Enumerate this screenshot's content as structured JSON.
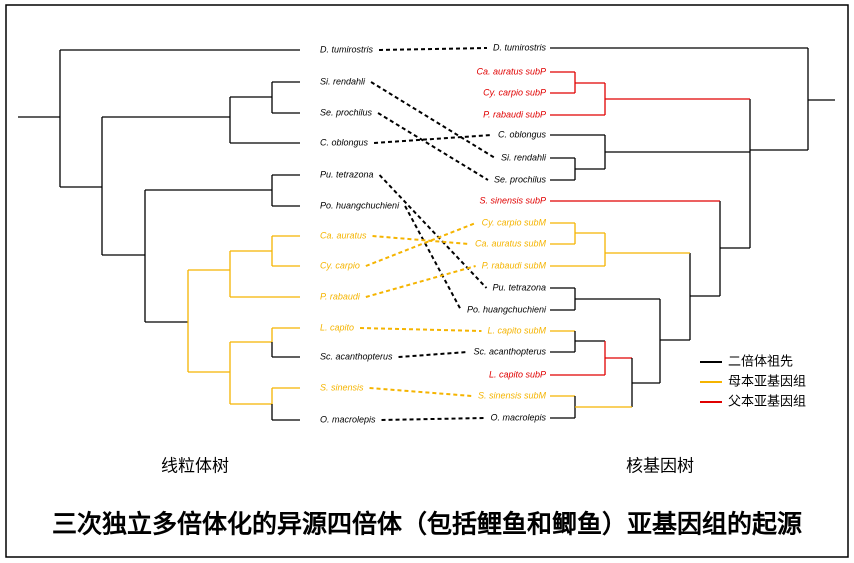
{
  "title": "三次独立多倍体化的异源四倍体（包括鲤鱼和鲫鱼）亚基因组的起源",
  "left_tree": {
    "title": "线粒体树",
    "leaves": [
      {
        "label": "D. tumirostris"
      },
      {
        "label": "Si. rendahli"
      },
      {
        "label": "Se. prochilus"
      },
      {
        "label": "C. oblongus"
      },
      {
        "label": "Pu. tetrazona"
      },
      {
        "label": "Po. huangchuchieni"
      },
      {
        "label": "Ca. auratus"
      },
      {
        "label": "Cy. carpio"
      },
      {
        "label": "P. rabaudi"
      },
      {
        "label": "L. capito"
      },
      {
        "label": "Sc. acanthopterus"
      },
      {
        "label": "S. sinensis"
      },
      {
        "label": "O. macrolepis"
      }
    ]
  },
  "right_tree": {
    "title": "核基因树",
    "leaves": [
      {
        "label": "D. tumirostris"
      },
      {
        "label": "Ca. auratus subP"
      },
      {
        "label": "Cy. carpio subP"
      },
      {
        "label": "P. rabaudi subP"
      },
      {
        "label": "C. oblongus"
      },
      {
        "label": "Si. rendahli"
      },
      {
        "label": "Se. prochilus"
      },
      {
        "label": "S. sinensis subP"
      },
      {
        "label": "Cy. carpio subM"
      },
      {
        "label": "Ca. auratus subM"
      },
      {
        "label": "P. rabaudi subM"
      },
      {
        "label": "Pu. tetrazona"
      },
      {
        "label": "Po. huangchuchieni"
      },
      {
        "label": "L. capito subM"
      },
      {
        "label": "Sc. acanthopterus"
      },
      {
        "label": "L. capito subP"
      },
      {
        "label": "S. sinensis subM"
      },
      {
        "label": "O. macrolepis"
      }
    ]
  },
  "legend": [
    {
      "label": "二倍体祖先"
    },
    {
      "label": "母本亚基因组"
    },
    {
      "label": "父本亚基因组"
    }
  ]
}
